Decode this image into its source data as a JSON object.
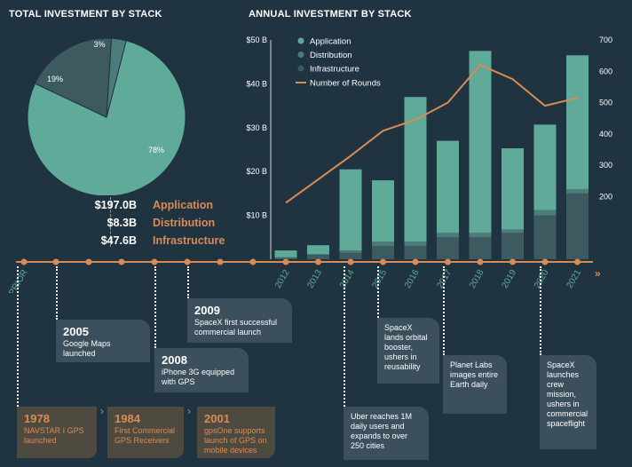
{
  "pie_title": "TOTAL INVESTMENT BY STACK",
  "bar_title": "ANNUAL INVESTMENT BY STACK",
  "colors": {
    "application": "#5faa98",
    "distribution": "#4c7b7c",
    "infrastructure": "#3e5a61",
    "line": "#d98b55",
    "timeline": "#d98b55",
    "bg": "#1f3340"
  },
  "summary": [
    {
      "value": "$197.0B",
      "label": "Application"
    },
    {
      "value": "$8.3B",
      "label": "Distribution"
    },
    {
      "value": "$47.6B",
      "label": "Infrastructure"
    }
  ],
  "timeline_labels": [
    "PRIOR",
    "2012",
    "2013",
    "2014",
    "2015",
    "2016",
    "2017",
    "2018",
    "2019",
    "2020",
    "2021"
  ],
  "events": {
    "e2009": {
      "year": "2009",
      "text": "SpaceX first successful commercial launch"
    },
    "e2005": {
      "year": "2005",
      "text": "Google Maps launched"
    },
    "e2008": {
      "year": "2008",
      "text": "iPhone 3G equipped with GPS"
    },
    "e1978": {
      "year": "1978",
      "text": "NAVSTAR I GPS launched"
    },
    "e1984": {
      "year": "1984",
      "text": "First Commercial GPS Receivers"
    },
    "e2001": {
      "year": "2001",
      "text": "gpsOne supports launch of GPS on mobile devices"
    },
    "e2014": {
      "text": "Uber reaches 1M daily users and expands to over 250 cities"
    },
    "e2015": {
      "text": "SpaceX lands orbital booster, ushers in reusability"
    },
    "e2017": {
      "text": "Planet Labs images entire Earth daily"
    },
    "e2020": {
      "text": "SpaceX launches crew mission, ushers in commercial spaceflight"
    }
  },
  "chart_data": [
    {
      "type": "pie",
      "title": "TOTAL INVESTMENT BY STACK",
      "labels": [
        "Application",
        "Distribution",
        "Infrastructure"
      ],
      "values": [
        78,
        3,
        19
      ],
      "value_labels": [
        "78%",
        "3%",
        "19%"
      ]
    },
    {
      "type": "bar",
      "title": "ANNUAL INVESTMENT BY STACK",
      "categories": [
        "2012",
        "2013",
        "2014",
        "2015",
        "2016",
        "2017",
        "2018",
        "2019",
        "2020",
        "2021"
      ],
      "stacked": true,
      "series": [
        {
          "name": "Application",
          "values": [
            1.5,
            2,
            18.5,
            14,
            33,
            21,
            41.5,
            18.5,
            19.5,
            30.5
          ]
        },
        {
          "name": "Distribution",
          "values": [
            0.2,
            0.2,
            0.5,
            1,
            1,
            1,
            1,
            0.8,
            1.2,
            1
          ]
        },
        {
          "name": "Infrastructure",
          "values": [
            0.3,
            1,
            1.5,
            3,
            3,
            5,
            5,
            6,
            10,
            15
          ]
        }
      ],
      "line": {
        "name": "Number of Rounds",
        "values": [
          180,
          255,
          330,
          410,
          445,
          500,
          620,
          575,
          490,
          515
        ]
      },
      "ylim": [
        0,
        50
      ],
      "yticks": [
        "$10 B",
        "$20 B",
        "$30 B",
        "$40 B",
        "$50 B"
      ],
      "y2lim": [
        0,
        700
      ],
      "y2ticks": [
        "200",
        "300",
        "400",
        "500",
        "600",
        "700"
      ],
      "legend_position": "top-left"
    }
  ]
}
